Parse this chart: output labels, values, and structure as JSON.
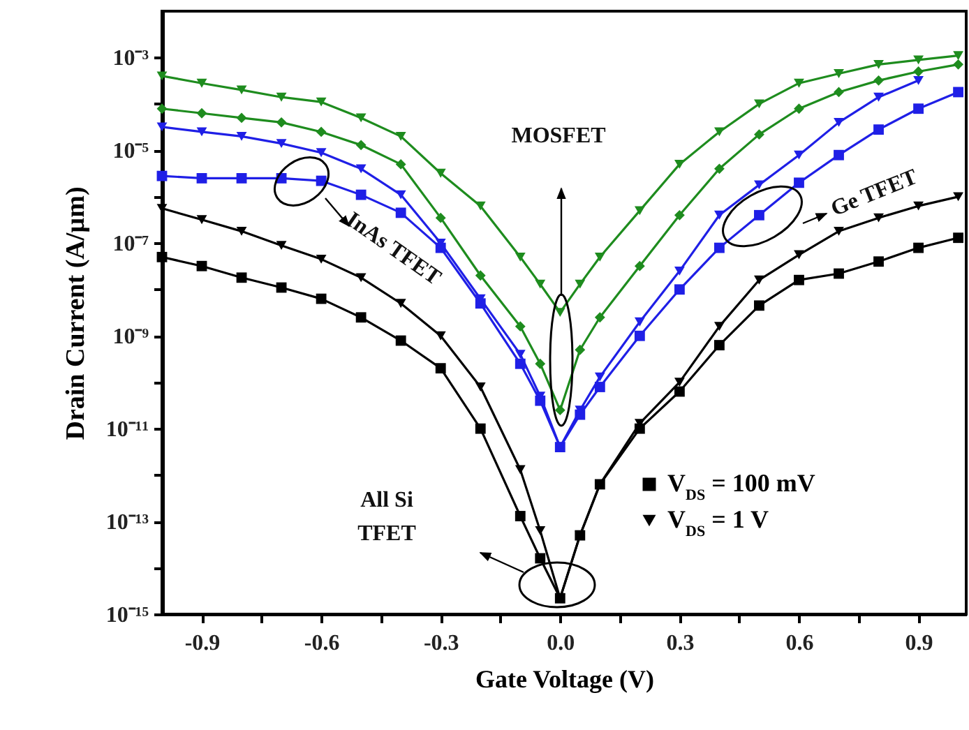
{
  "chart_data": {
    "type": "line",
    "xlabel": "Gate Voltage (V)",
    "ylabel": "Drain Current (A/µm)",
    "x": [
      -1.0,
      -0.9,
      -0.8,
      -0.7,
      -0.6,
      -0.5,
      -0.4,
      -0.3,
      -0.2,
      -0.1,
      -0.05,
      0.0,
      0.05,
      0.1,
      0.2,
      0.3,
      0.4,
      0.5,
      0.6,
      0.7,
      0.8,
      0.9,
      1.0
    ],
    "series": [
      {
        "name": "V$_{DS}$ = 100 mV",
        "color": "#000000",
        "marker": "square",
        "values": [
          5e-08,
          3.2e-08,
          1.8e-08,
          1.1e-08,
          6.3e-09,
          2.5e-09,
          7.9e-10,
          2e-10,
          1e-11,
          1.3e-13,
          1.6e-14,
          2.2e-15,
          5e-14,
          6.3e-13,
          1e-11,
          6.3e-11,
          6.3e-10,
          4.5e-09,
          1.6e-08,
          2.2e-08,
          4e-08,
          7.9e-08,
          1.3e-07
        ]
      },
      {
        "name": "V$_{DS}$ = 1 V",
        "color": "#000000",
        "marker": "triangle",
        "values": [
          5.6e-07,
          3.2e-07,
          1.8e-07,
          8.9e-08,
          4.5e-08,
          1.8e-08,
          5e-09,
          1e-09,
          7.9e-11,
          1.3e-12,
          6.3e-14,
          2.2e-15,
          5e-14,
          6.3e-13,
          1.3e-11,
          1e-10,
          1.6e-09,
          1.6e-08,
          5.6e-08,
          1.8e-07,
          3.5e-07,
          6.3e-07,
          1e-06
        ]
      },
      {
        "color": "#1f1fe6",
        "marker": "square",
        "values": [
          2.8e-06,
          2.5e-06,
          2.5e-06,
          2.5e-06,
          2.2e-06,
          1.1e-06,
          4.5e-07,
          7.9e-08,
          5e-09,
          2.5e-10,
          4e-11,
          4e-12,
          2e-11,
          7.9e-11,
          1e-09,
          1e-08,
          7.9e-08,
          4e-07,
          2e-06,
          7.9e-06,
          2.8e-05,
          7.9e-05,
          0.00018
        ]
      },
      {
        "color": "#1f1fe6",
        "marker": "triangle",
        "values": [
          3.2e-05,
          2.5e-05,
          2e-05,
          1.4e-05,
          8.9e-06,
          4e-06,
          1.1e-06,
          1e-07,
          6.3e-09,
          4e-10,
          5e-11,
          4e-12,
          2.5e-11,
          1.3e-10,
          2e-09,
          2.5e-08,
          4e-07,
          1.8e-06,
          7.9e-06,
          4e-05,
          0.00014,
          0.00032,
          null
        ]
      },
      {
        "color": "#1e8c1e",
        "marker": "diamond",
        "values": [
          7.9e-05,
          6.3e-05,
          5e-05,
          4e-05,
          2.5e-05,
          1.3e-05,
          5e-06,
          3.5e-07,
          2e-08,
          1.6e-09,
          2.5e-10,
          2.5e-11,
          5e-10,
          2.5e-09,
          3.2e-08,
          4e-07,
          4e-06,
          2.2e-05,
          7.9e-05,
          0.00018,
          0.00032,
          0.0005,
          0.00071
        ]
      },
      {
        "color": "#1e8c1e",
        "marker": "triangle",
        "values": [
          0.0004,
          0.00028,
          0.0002,
          0.00014,
          0.00011,
          5e-05,
          2e-05,
          3.2e-06,
          6.3e-07,
          5e-08,
          1.3e-08,
          3.2e-09,
          1.3e-08,
          5e-08,
          5e-07,
          5e-06,
          2.5e-05,
          0.0001,
          0.00028,
          0.00045,
          0.00071,
          0.00089,
          0.0011
        ]
      }
    ],
    "log": "y",
    "xlim": [
      -1.0,
      1.02
    ],
    "xticks": [
      -0.9,
      {
        "value": -0.75,
        "label": null
      },
      -0.6,
      {
        "value": -0.45,
        "label": null
      },
      -0.3,
      {
        "value": -0.15,
        "label": null
      },
      {
        "value": 0,
        "label": "0.0"
      },
      {
        "value": 0.15,
        "label": null
      },
      0.3,
      {
        "value": 0.45,
        "label": null
      },
      0.6,
      {
        "value": 0.75,
        "label": null
      },
      0.9
    ],
    "ylim": [
      1e-15,
      0.01
    ],
    "yticks": [
      {
        "value": 1e-15,
        "label": "10⁻¹⁵"
      },
      {
        "value": 1e-14,
        "label": null
      },
      {
        "value": 1e-13,
        "label": "10⁻¹³"
      },
      {
        "value": 1e-12,
        "label": null
      },
      {
        "value": 1e-11,
        "label": "10⁻¹¹"
      },
      {
        "value": 1e-10,
        "label": null
      },
      {
        "value": 1e-09,
        "label": "10⁻⁹"
      },
      {
        "value": 1e-08,
        "label": null
      },
      {
        "value": 1e-07,
        "label": "10⁻⁷"
      },
      {
        "value": 1e-06,
        "label": null
      },
      {
        "value": 1e-05,
        "label": "10⁻⁵"
      },
      {
        "value": 0.0001,
        "label": null
      },
      {
        "value": 0.001,
        "label": "10⁻³"
      }
    ],
    "grid": false,
    "legend": "bottom right",
    "line_style": "solid",
    "annotations": [
      "MOSFET",
      "InAs TFET",
      "Ge TFET",
      "All Si\nTFET"
    ]
  }
}
